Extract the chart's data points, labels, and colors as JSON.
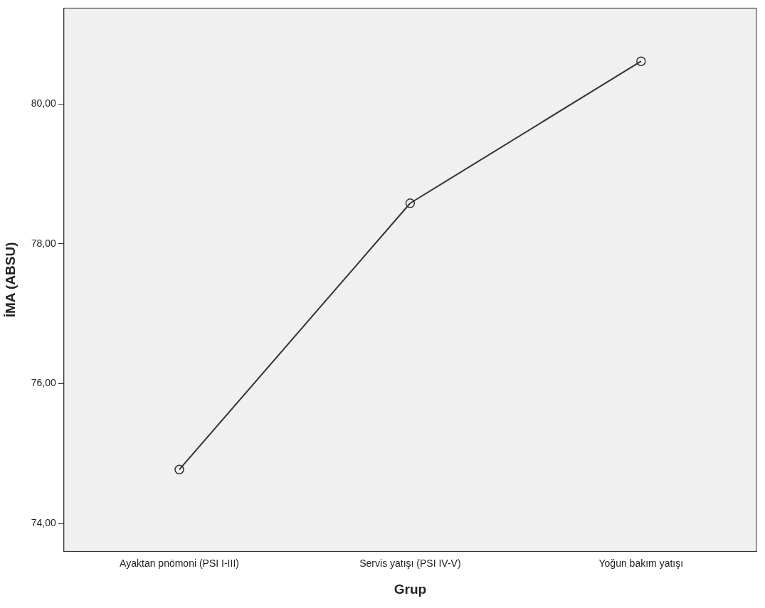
{
  "chart_data": {
    "type": "line",
    "xlabel": "Grup",
    "ylabel": "İMA (ABSU)",
    "categories": [
      "Ayaktan pnömoni (PSI I-III)",
      "Servis yatışı (PSI IV-V)",
      "Yoğun bakım yatışı"
    ],
    "series": [
      {
        "color": "#333333",
        "values": [
          74.77,
          78.58,
          80.61
        ]
      }
    ],
    "ylim": [
      73.6,
      81.37
    ],
    "yticks": [
      {
        "value": 74,
        "label": "74,00"
      },
      {
        "value": 76,
        "label": "76,00"
      },
      {
        "value": 78,
        "label": "78,00"
      },
      {
        "value": 80,
        "label": "80,00"
      }
    ],
    "grid": false,
    "legend": false,
    "marker": "circle",
    "line_style": "solid"
  }
}
